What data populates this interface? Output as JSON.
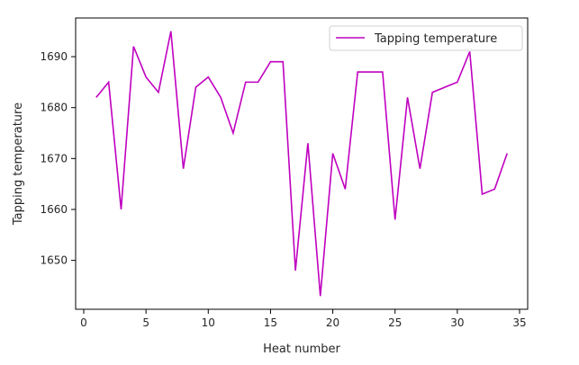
{
  "chart_data": {
    "type": "line",
    "title": "",
    "xlabel": "Heat number",
    "ylabel": "Tapping temperature",
    "xlim": [
      -0.65,
      35.65
    ],
    "ylim": [
      1640.4,
      1697.6
    ],
    "xticks": [
      0,
      5,
      10,
      15,
      20,
      25,
      30,
      35
    ],
    "yticks": [
      1650,
      1660,
      1670,
      1680,
      1690
    ],
    "grid": false,
    "legend_position": "top-right",
    "series": [
      {
        "name": "Tapping temperature",
        "color": "#bf00bf",
        "x": [
          1,
          2,
          3,
          4,
          5,
          6,
          7,
          8,
          9,
          10,
          11,
          12,
          13,
          14,
          15,
          16,
          17,
          18,
          19,
          20,
          21,
          22,
          23,
          24,
          25,
          26,
          27,
          28,
          29,
          30,
          31,
          32,
          33,
          34
        ],
        "y": [
          1682,
          1685,
          1660,
          1692,
          1686,
          1683,
          1695,
          1668,
          1684,
          1686,
          1682,
          1675,
          1685,
          1685,
          1689,
          1689,
          1648,
          1673,
          1643,
          1671,
          1664,
          1687,
          1687,
          1687,
          1658,
          1682,
          1668,
          1683,
          1684,
          1685,
          1691,
          1663,
          1664,
          1671
        ]
      }
    ]
  }
}
